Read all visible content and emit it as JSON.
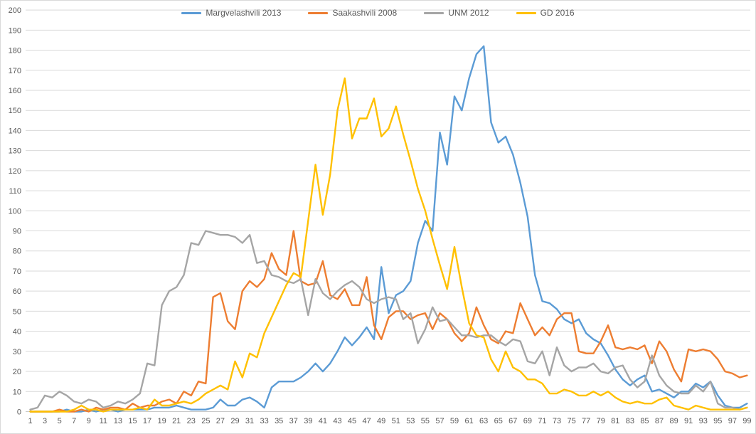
{
  "chart_data": {
    "type": "line",
    "title": "",
    "xlabel": "",
    "ylabel": "",
    "ylim": [
      0,
      200
    ],
    "y_tick_step": 10,
    "grid": "horizontal",
    "legend_position": "top-center",
    "x_tick_labels": [
      1,
      3,
      5,
      7,
      9,
      11,
      13,
      15,
      17,
      19,
      21,
      23,
      25,
      27,
      29,
      31,
      33,
      35,
      37,
      39,
      41,
      43,
      45,
      47,
      49,
      51,
      53,
      55,
      57,
      59,
      61,
      63,
      65,
      67,
      69,
      71,
      73,
      75,
      77,
      79,
      81,
      83,
      85,
      87,
      89,
      91,
      93,
      95,
      97,
      99
    ],
    "x_range": [
      1,
      99
    ],
    "series": [
      {
        "name": "Margvelashvili 2013",
        "color": "#5B9BD5",
        "values": [
          0,
          0,
          0,
          0,
          0,
          1,
          0,
          0,
          1,
          0,
          1,
          1,
          0,
          1,
          1,
          1,
          1,
          2,
          2,
          2,
          3,
          2,
          1,
          1,
          1,
          2,
          6,
          3,
          3,
          6,
          7,
          5,
          2,
          12,
          15,
          15,
          15,
          17,
          20,
          24,
          20,
          24,
          30,
          37,
          33,
          37,
          42,
          36,
          72,
          49,
          58,
          60,
          65,
          84,
          95,
          90,
          139,
          123,
          157,
          150,
          166,
          178,
          182,
          144,
          134,
          137,
          128,
          114,
          97,
          68,
          55,
          54,
          51,
          46,
          44,
          46,
          39,
          36,
          34,
          28,
          21,
          16,
          13,
          16,
          18,
          10,
          11,
          9,
          7,
          10,
          10,
          14,
          12,
          15,
          8,
          3,
          2,
          2,
          4
        ]
      },
      {
        "name": "Saakashvili 2008",
        "color": "#ED7D31",
        "values": [
          0,
          0,
          0,
          0,
          1,
          0,
          0,
          1,
          0,
          2,
          1,
          2,
          2,
          1,
          4,
          2,
          3,
          3,
          5,
          6,
          4,
          10,
          8,
          15,
          14,
          57,
          59,
          45,
          41,
          60,
          65,
          62,
          66,
          79,
          71,
          68,
          90,
          65,
          63,
          64,
          75,
          58,
          56,
          61,
          53,
          53,
          67,
          43,
          36,
          47,
          50,
          50,
          46,
          48,
          49,
          41,
          49,
          46,
          39,
          35,
          39,
          52,
          43,
          36,
          34,
          40,
          39,
          54,
          46,
          38,
          42,
          38,
          46,
          49,
          49,
          30,
          29,
          29,
          35,
          43,
          32,
          31,
          32,
          31,
          33,
          24,
          35,
          30,
          21,
          15,
          31,
          30,
          31,
          30,
          26,
          20,
          19,
          17,
          18
        ]
      },
      {
        "name": "UNM 2012",
        "color": "#A5A5A5",
        "values": [
          1,
          2,
          8,
          7,
          10,
          8,
          5,
          4,
          6,
          5,
          2,
          3,
          5,
          4,
          6,
          9,
          24,
          23,
          53,
          60,
          62,
          68,
          84,
          83,
          90,
          89,
          88,
          88,
          87,
          84,
          88,
          74,
          75,
          68,
          67,
          65,
          64,
          66,
          48,
          66,
          59,
          56,
          60,
          63,
          65,
          62,
          56,
          54,
          56,
          57,
          56,
          46,
          49,
          34,
          41,
          52,
          45,
          46,
          42,
          38,
          38,
          37,
          38,
          38,
          35,
          33,
          36,
          35,
          25,
          24,
          30,
          18,
          32,
          23,
          20,
          22,
          22,
          24,
          20,
          19,
          22,
          23,
          16,
          12,
          15,
          28,
          18,
          13,
          10,
          9,
          9,
          13,
          10,
          15,
          4,
          2,
          2,
          1,
          2
        ]
      },
      {
        "name": "GD 2016",
        "color": "#FFC000",
        "values": [
          0,
          0,
          0,
          0,
          0,
          0,
          1,
          3,
          1,
          1,
          0,
          1,
          1,
          1,
          1,
          2,
          1,
          6,
          3,
          3,
          4,
          5,
          4,
          6,
          9,
          11,
          13,
          11,
          25,
          17,
          29,
          27,
          39,
          47,
          55,
          63,
          69,
          67,
          95,
          123,
          98,
          118,
          150,
          166,
          136,
          146,
          146,
          156,
          137,
          141,
          152,
          138,
          125,
          111,
          100,
          86,
          73,
          61,
          82,
          62,
          44,
          38,
          37,
          26,
          20,
          30,
          22,
          20,
          16,
          16,
          14,
          9,
          9,
          11,
          10,
          8,
          8,
          10,
          8,
          10,
          7,
          5,
          4,
          5,
          4,
          4,
          6,
          7,
          3,
          2,
          1,
          3,
          2,
          1,
          1,
          1,
          1,
          1,
          2
        ]
      }
    ],
    "y_tick_labels": [
      0,
      10,
      20,
      30,
      40,
      50,
      60,
      70,
      80,
      90,
      100,
      110,
      120,
      130,
      140,
      150,
      160,
      170,
      180,
      190,
      200
    ]
  },
  "colors": {
    "background": "#FFFFFF",
    "gridline": "#D9D9D9",
    "axis_line": "#C8C8C8",
    "tick_text": "#595959",
    "border": "#D9D9D9"
  }
}
